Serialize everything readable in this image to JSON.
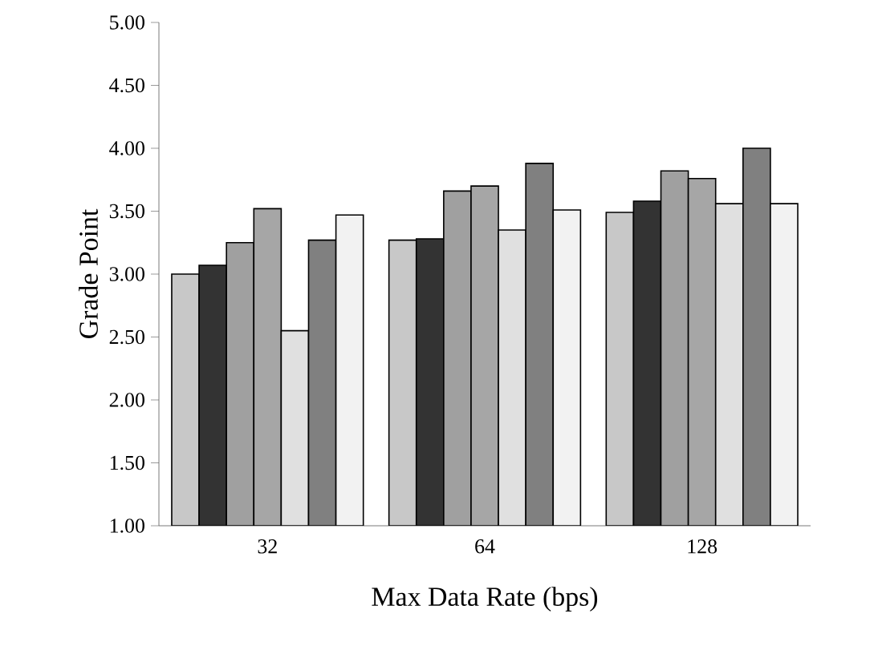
{
  "chart_data": {
    "type": "bar",
    "xlabel": "Max Data Rate (bps)",
    "ylabel": "Grade Point",
    "categories": [
      "32",
      "64",
      "128"
    ],
    "ylim": [
      1,
      5
    ],
    "yticks": [
      {
        "value": 1,
        "label": "1.00"
      },
      {
        "value": 1.5,
        "label": "1.50"
      },
      {
        "value": 2,
        "label": "2.00"
      },
      {
        "value": 2.5,
        "label": "2.50"
      },
      {
        "value": 3,
        "label": "3.00"
      },
      {
        "value": 3.5,
        "label": "3.50"
      },
      {
        "value": 4,
        "label": "4.00"
      },
      {
        "value": 4.5,
        "label": "4.50"
      },
      {
        "value": 5,
        "label": "5.00"
      }
    ],
    "grid": false,
    "series": [
      {
        "color": "#c8c8c8",
        "values": [
          3.0,
          3.27,
          3.49
        ]
      },
      {
        "color": "#333333",
        "values": [
          3.07,
          3.28,
          3.58
        ]
      },
      {
        "color": "#a0a0a0",
        "values": [
          3.25,
          3.66,
          3.82
        ]
      },
      {
        "color": "#a6a6a6",
        "values": [
          3.52,
          3.7,
          3.76
        ]
      },
      {
        "color": "#e0e0e0",
        "values": [
          2.55,
          3.35,
          3.56
        ]
      },
      {
        "color": "#808080",
        "values": [
          3.27,
          3.88,
          4.0
        ]
      },
      {
        "color": "#f2f2f2",
        "values": [
          3.47,
          3.51,
          3.56
        ]
      }
    ]
  }
}
